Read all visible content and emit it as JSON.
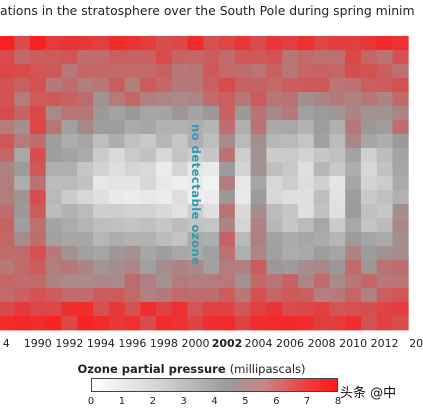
{
  "title": "ations in the stratosphere over the South Pole during spring minim",
  "chart_data": {
    "type": "heatmap",
    "x_ticks": [
      "4",
      "1990",
      "1992",
      "1994",
      "1996",
      "1998",
      "2000",
      "2002",
      "2004",
      "2006",
      "2008",
      "2010",
      "2012",
      "20"
    ],
    "x_ticks_bold": [
      "2002"
    ],
    "x_range": [
      1987.6,
      2013.8
    ],
    "annotation": "no detectable ozone",
    "years": [
      1988,
      1989,
      1990,
      1991,
      1992,
      1993,
      1994,
      1995,
      1996,
      1997,
      1998,
      1999,
      2000,
      2001,
      2002,
      2003,
      2004,
      2005,
      2006,
      2007,
      2008,
      2009,
      2010,
      2011,
      2012,
      2013
    ],
    "altitude_levels": 21,
    "depletion_fraction": [
      0.1,
      0.35,
      0.0,
      0.45,
      0.55,
      0.6,
      0.75,
      0.8,
      0.75,
      0.8,
      0.85,
      0.78,
      0.8,
      0.82,
      0.2,
      0.75,
      0.3,
      0.65,
      0.7,
      0.75,
      0.6,
      0.75,
      0.4,
      0.7,
      0.6,
      0.35
    ],
    "colorbar": {
      "title": "Ozone partial pressure",
      "unit": "(millipascals)",
      "min": 0,
      "max": 8,
      "ticks": [
        "0",
        "1",
        "2",
        "3",
        "4",
        "5",
        "6",
        "7",
        "8"
      ],
      "colors": [
        "#ffffff",
        "#9b9b9b",
        "#ff1a1a"
      ]
    }
  },
  "watermark": "头条 @中"
}
